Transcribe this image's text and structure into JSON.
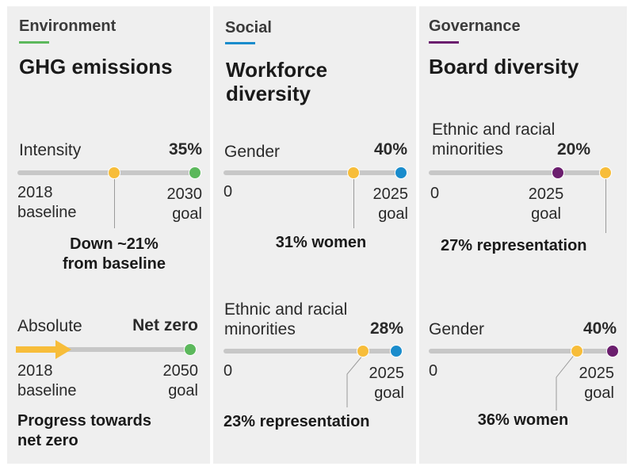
{
  "colors": {
    "environment": "#5cb85c",
    "social": "#1a8ccc",
    "governance": "#6b1e6e",
    "current": "#f7bd3a",
    "track": "#c7c7c7"
  },
  "environment": {
    "category": "Environment",
    "title": "GHG emissions",
    "intensity": {
      "label": "Intensity",
      "target": "35%",
      "start_label": "2018\nbaseline",
      "end_label": "2030\ngoal",
      "note": "Down ~21%\nfrom baseline"
    },
    "absolute": {
      "label": "Absolute",
      "target": "Net zero",
      "start_label": "2018\nbaseline",
      "end_label": "2050\ngoal",
      "note": "Progress towards\nnet zero"
    }
  },
  "social": {
    "category": "Social",
    "title": "Workforce\ndiversity",
    "gender": {
      "label": "Gender",
      "target": "40%",
      "start_label": "0",
      "end_label": "2025\ngoal",
      "note": "31% women"
    },
    "minorities": {
      "label": "Ethnic and racial\nminorities",
      "target": "28%",
      "start_label": "0",
      "end_label": "2025\ngoal",
      "note": "23% representation"
    }
  },
  "governance": {
    "category": "Governance",
    "title": "Board diversity",
    "minorities": {
      "label": "Ethnic and racial\nminorities",
      "target": "20%",
      "start_label": "0",
      "end_label": "2025\ngoal",
      "note": "27% representation"
    },
    "gender": {
      "label": "Gender",
      "target": "40%",
      "start_label": "0",
      "end_label": "2025\ngoal",
      "note": "36% women"
    }
  }
}
